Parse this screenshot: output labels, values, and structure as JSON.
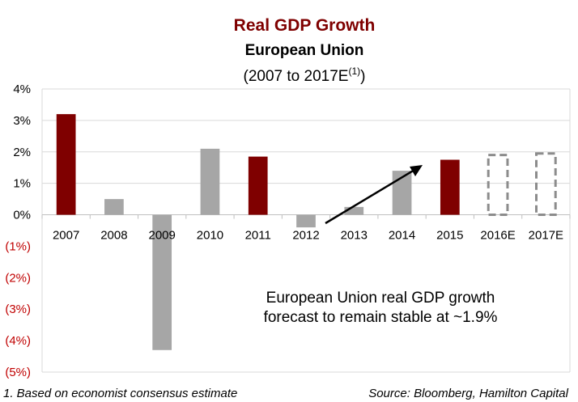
{
  "chart_data": {
    "type": "bar",
    "title": "Real GDP Growth",
    "subtitle": "European Union",
    "period_label": "(2007 to 2017E",
    "period_superscript": "(1)",
    "period_close": ")",
    "categories": [
      "2007",
      "2008",
      "2009",
      "2010",
      "2011",
      "2012",
      "2013",
      "2014",
      "2015",
      "2016E",
      "2017E"
    ],
    "values": [
      3.2,
      0.5,
      -4.3,
      2.1,
      1.85,
      -0.4,
      0.25,
      1.4,
      1.75,
      1.9,
      1.95
    ],
    "bar_styles": [
      "highlight",
      "normal",
      "normal",
      "normal",
      "highlight",
      "normal",
      "normal",
      "normal",
      "highlight",
      "forecast",
      "forecast"
    ],
    "ylim": [
      -5,
      4
    ],
    "y_ticks": [
      {
        "value": 4,
        "label": "4%"
      },
      {
        "value": 3,
        "label": "3%"
      },
      {
        "value": 2,
        "label": "2%"
      },
      {
        "value": 1,
        "label": "1%"
      },
      {
        "value": 0,
        "label": "0%"
      },
      {
        "value": -1,
        "label": "(1%)"
      },
      {
        "value": -2,
        "label": "(2%)"
      },
      {
        "value": -3,
        "label": "(3%)"
      },
      {
        "value": -4,
        "label": "(4%)"
      },
      {
        "value": -5,
        "label": "(5%)"
      }
    ],
    "grid": true,
    "annotation": [
      "European Union real GDP growth",
      "forecast to remain stable at ~1.9%"
    ],
    "footnote": "1. Based on economist consensus estimate",
    "source": "Source: Bloomberg, Hamilton Capital"
  },
  "colors": {
    "highlight": "#7f0000",
    "normal": "#a6a6a6",
    "forecast_outline": "#8c8c8c",
    "title": "#7f0000",
    "negative_tick": "#c00000",
    "grid": "#d9d9d9"
  }
}
